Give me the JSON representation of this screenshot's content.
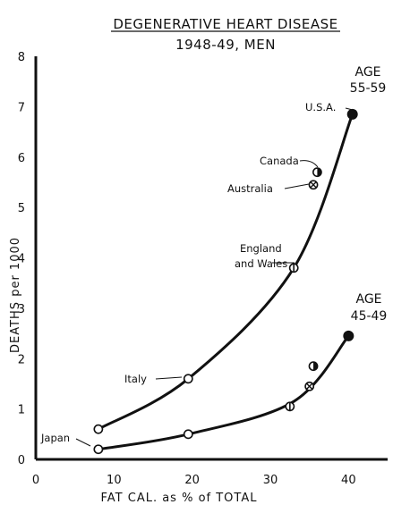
{
  "chart_data": {
    "type": "scatter",
    "title": "DEGENERATIVE HEART DISEASE",
    "subtitle": "1948-49, MEN",
    "xlabel": "FAT CAL. as % of TOTAL",
    "ylabel": "DEATHS per 1000",
    "xlim": [
      0,
      45
    ],
    "ylim": [
      0,
      8
    ],
    "x_ticks": [
      "0",
      "10",
      "20",
      "30",
      "40"
    ],
    "y_ticks": [
      "0",
      "1",
      "2",
      "3",
      "4",
      "5",
      "6",
      "7",
      "8"
    ],
    "grid": false,
    "series": [
      {
        "name": "AGE 55-59",
        "label_lines": [
          "AGE",
          "55-59"
        ],
        "color": "#111111",
        "points": [
          {
            "x": 8,
            "y": 0.6,
            "label": "Japan",
            "marker": "open"
          },
          {
            "x": 19.5,
            "y": 1.6,
            "label": "Italy",
            "marker": "open"
          },
          {
            "x": 33,
            "y": 3.8,
            "label": "England and Wales",
            "marker": "half-vertical"
          },
          {
            "x": 35.5,
            "y": 5.45,
            "label": "Australia",
            "marker": "crossed"
          },
          {
            "x": 36,
            "y": 5.7,
            "label": "Canada",
            "marker": "half-filled"
          },
          {
            "x": 40.5,
            "y": 6.85,
            "label": "U.S.A.",
            "marker": "filled"
          }
        ]
      },
      {
        "name": "AGE 45-49",
        "label_lines": [
          "AGE",
          "45-49"
        ],
        "color": "#111111",
        "points": [
          {
            "x": 8,
            "y": 0.2,
            "marker": "open"
          },
          {
            "x": 19.5,
            "y": 0.5,
            "marker": "open"
          },
          {
            "x": 32.5,
            "y": 1.05,
            "marker": "half-vertical"
          },
          {
            "x": 35,
            "y": 1.45,
            "marker": "crossed"
          },
          {
            "x": 35.5,
            "y": 1.85,
            "marker": "half-filled"
          },
          {
            "x": 40,
            "y": 2.45,
            "marker": "filled"
          }
        ]
      }
    ],
    "annotations": [
      {
        "text": "Japan",
        "x": 8,
        "y": 0.35
      },
      {
        "text": "Italy",
        "x": 19.5,
        "y": 1.6
      },
      {
        "text": "England",
        "x": 33,
        "y": 3.8
      },
      {
        "text": "and Wales",
        "x": 33,
        "y": 3.8
      },
      {
        "text": "Canada",
        "x": 36,
        "y": 5.7
      },
      {
        "text": "Australia",
        "x": 35.5,
        "y": 5.45
      },
      {
        "text": "U.S.A.",
        "x": 40.5,
        "y": 6.85
      }
    ]
  }
}
